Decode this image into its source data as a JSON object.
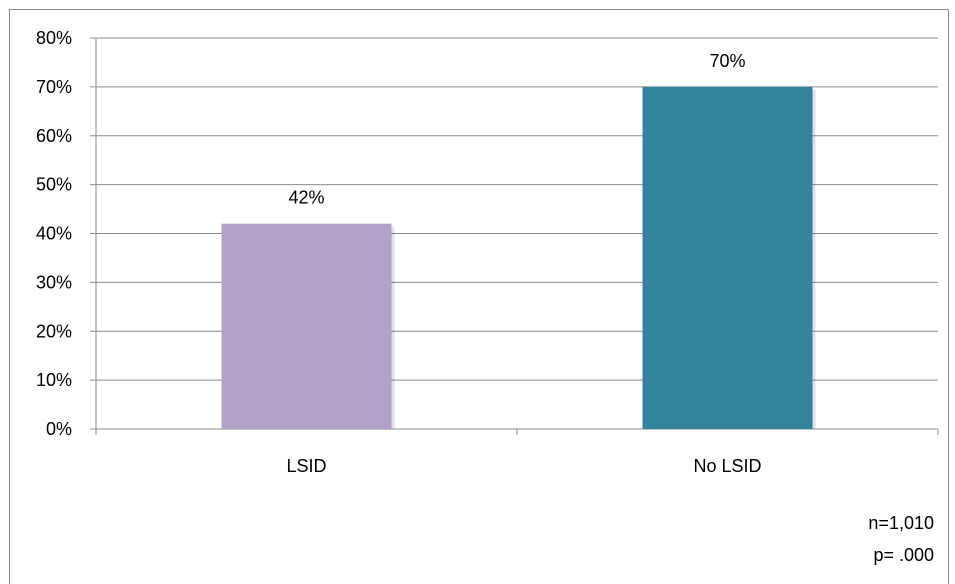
{
  "chart_data": {
    "type": "bar",
    "categories": [
      "LSID",
      "No LSID"
    ],
    "values": [
      42,
      70
    ],
    "value_labels": [
      "42%",
      "70%"
    ],
    "bar_colors": [
      "#b1a0c7",
      "#31849b"
    ],
    "ylim": [
      0,
      80
    ],
    "yticks": [
      "0%",
      "10%",
      "20%",
      "30%",
      "40%",
      "50%",
      "60%",
      "70%",
      "80%"
    ],
    "grid": true,
    "title": "",
    "xlabel": "",
    "ylabel": ""
  },
  "notes": {
    "n": "n=1,010",
    "p": "p= .000"
  }
}
